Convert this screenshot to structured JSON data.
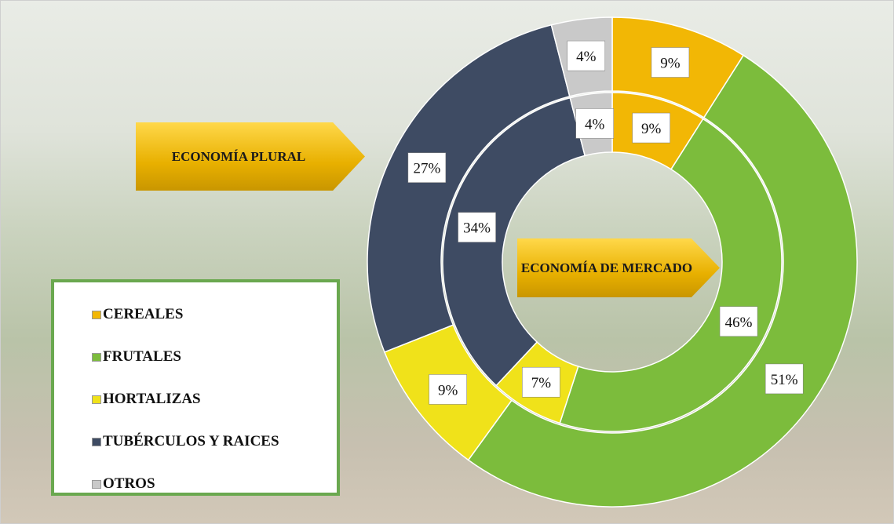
{
  "chart_data": {
    "type": "doughnut",
    "categories": [
      "CEREALES",
      "FRUTALES",
      "HORTALIZAS",
      "TUBÉRCULOS Y RAICES",
      "OTROS"
    ],
    "colors": [
      "#f2b705",
      "#7cbc3c",
      "#f0e21a",
      "#3e4b63",
      "#c9c9c9"
    ],
    "series": [
      {
        "name": "ECONOMÍA PLURAL",
        "values": [
          9,
          51,
          9,
          27,
          4
        ],
        "value_labels": [
          "9%",
          "51%",
          "9%",
          "27%",
          "4%"
        ]
      },
      {
        "name": "ECONOMÍA DE MERCADO",
        "values": [
          9,
          46,
          7,
          34,
          4
        ],
        "value_labels": [
          "9%",
          "46%",
          "7%",
          "34%",
          "4%"
        ]
      }
    ]
  }
}
